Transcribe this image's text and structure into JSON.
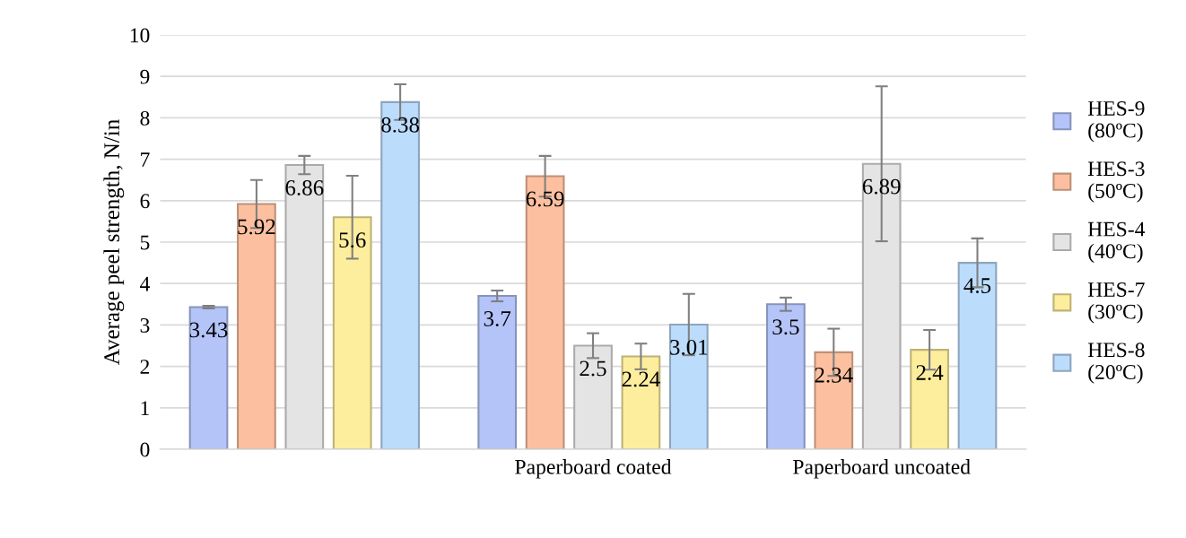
{
  "chart_data": {
    "type": "bar",
    "ylabel": "Average peel strength, N/in",
    "categories": [
      null,
      "Paperboard coated",
      "Paperboard uncoated"
    ],
    "series": [
      {
        "name": "HES-9\n(80ºC)",
        "color": "#b4c4f8",
        "values": [
          3.43,
          3.7,
          3.5
        ],
        "errors": [
          0.03,
          0.13,
          0.16
        ]
      },
      {
        "name": "HES-3\n(50ºC)",
        "color": "#fcc0a0",
        "values": [
          5.92,
          6.59,
          2.34
        ],
        "errors": [
          0.58,
          0.49,
          0.57
        ]
      },
      {
        "name": "HES-4\n(40ºC)",
        "color": "#e4e4e4",
        "values": [
          6.86,
          2.5,
          6.89
        ],
        "errors": [
          0.22,
          0.3,
          1.87
        ]
      },
      {
        "name": "HES-7\n(30ºC)",
        "color": "#fdee9e",
        "values": [
          5.6,
          2.24,
          2.4
        ],
        "errors": [
          1.0,
          0.31,
          0.48
        ]
      },
      {
        "name": "HES-8\n(20ºC)",
        "color": "#bcdcfc",
        "values": [
          8.38,
          3.01,
          4.5
        ],
        "errors": [
          0.43,
          0.74,
          0.59
        ]
      }
    ],
    "ylim": [
      0,
      10
    ],
    "yticks": [
      0,
      1,
      2,
      3,
      4,
      5,
      6,
      7,
      8,
      9,
      10
    ],
    "grid": "y",
    "legend": "right",
    "data_labels": true
  }
}
